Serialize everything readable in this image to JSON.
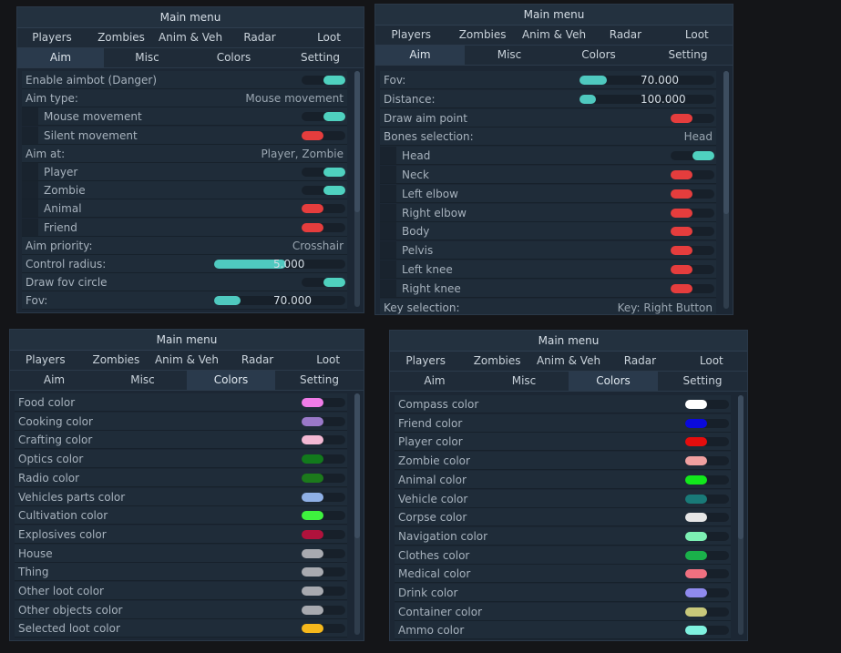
{
  "menu_title": "Main menu",
  "tabs_row1": [
    "Players",
    "Zombies",
    "Anim & Veh",
    "Radar",
    "Loot"
  ],
  "tabs_row2": [
    "Aim",
    "Misc",
    "Colors",
    "Setting"
  ],
  "panel_aim": {
    "active_tab": "Aim",
    "rows": [
      {
        "label": "Enable aimbot (Danger)",
        "kind": "toggle",
        "on": true
      },
      {
        "label": "Aim type:",
        "kind": "value",
        "value": "Mouse movement"
      },
      {
        "label": "Mouse movement",
        "kind": "toggle",
        "on": true,
        "sub": true
      },
      {
        "label": "Silent movement",
        "kind": "toggle",
        "on": false,
        "sub": true
      },
      {
        "label": "Aim at:",
        "kind": "value",
        "value": "Player, Zombie"
      },
      {
        "label": "Player",
        "kind": "toggle",
        "on": true,
        "sub": true
      },
      {
        "label": "Zombie",
        "kind": "toggle",
        "on": true,
        "sub": true
      },
      {
        "label": "Animal",
        "kind": "toggle",
        "on": false,
        "sub": true
      },
      {
        "label": "Friend",
        "kind": "toggle",
        "on": false,
        "sub": true
      },
      {
        "label": "Aim priority:",
        "kind": "value",
        "value": "Crosshair"
      },
      {
        "label": "Control radius:",
        "kind": "slider",
        "fraction": 0.55,
        "value": "5.000"
      },
      {
        "label": "Draw fov circle",
        "kind": "toggle",
        "on": true
      },
      {
        "label": "Fov:",
        "kind": "slider",
        "fraction": 0.2,
        "value": "70.000"
      }
    ]
  },
  "panel_setting": {
    "active_tab": "Aim",
    "rows": [
      {
        "label": "Fov:",
        "kind": "slider",
        "fraction": 0.2,
        "value": "70.000"
      },
      {
        "label": "Distance:",
        "kind": "slider",
        "fraction": 0.12,
        "value": "100.000"
      },
      {
        "label": "Draw aim point",
        "kind": "toggle",
        "on": false
      },
      {
        "label": "Bones selection:",
        "kind": "value",
        "value": "Head"
      },
      {
        "label": "Head",
        "kind": "toggle",
        "on": true,
        "sub": true
      },
      {
        "label": "Neck",
        "kind": "toggle",
        "on": false,
        "sub": true
      },
      {
        "label": "Left elbow",
        "kind": "toggle",
        "on": false,
        "sub": true
      },
      {
        "label": "Right elbow",
        "kind": "toggle",
        "on": false,
        "sub": true
      },
      {
        "label": "Body",
        "kind": "toggle",
        "on": false,
        "sub": true
      },
      {
        "label": "Pelvis",
        "kind": "toggle",
        "on": false,
        "sub": true
      },
      {
        "label": "Left knee",
        "kind": "toggle",
        "on": false,
        "sub": true
      },
      {
        "label": "Right knee",
        "kind": "toggle",
        "on": false,
        "sub": true
      },
      {
        "label": "Key selection:",
        "kind": "value",
        "value": "Key: Right Button"
      }
    ]
  },
  "panel_loot_colors": {
    "active_tab": "Colors",
    "rows": [
      {
        "label": "Food color",
        "kind": "color",
        "color": "#f07ce8"
      },
      {
        "label": "Cooking color",
        "kind": "color",
        "color": "#9a79c9"
      },
      {
        "label": "Crafting color",
        "kind": "color",
        "color": "#f3b8d3"
      },
      {
        "label": "Optics color",
        "kind": "color",
        "color": "#127a1c"
      },
      {
        "label": "Radio color",
        "kind": "color",
        "color": "#1c7a1c"
      },
      {
        "label": "Vehicles parts color",
        "kind": "color",
        "color": "#8fb0e6"
      },
      {
        "label": "Cultivation color",
        "kind": "color",
        "color": "#3ef23e"
      },
      {
        "label": "Explosives color",
        "kind": "color",
        "color": "#b0123c"
      },
      {
        "label": "House",
        "kind": "color",
        "color": "#a8aab0"
      },
      {
        "label": "Thing",
        "kind": "color",
        "color": "#a8aab0"
      },
      {
        "label": "Other loot color",
        "kind": "color",
        "color": "#a8aab0"
      },
      {
        "label": "Other objects color",
        "kind": "color",
        "color": "#a8aab0"
      },
      {
        "label": "Selected loot color",
        "kind": "color",
        "color": "#f5b81c"
      }
    ]
  },
  "panel_entity_colors": {
    "active_tab": "Colors",
    "rows": [
      {
        "label": "Compass color",
        "kind": "color",
        "color": "#ffffff"
      },
      {
        "label": "Friend color",
        "kind": "color",
        "color": "#0a0adc"
      },
      {
        "label": "Player color",
        "kind": "color",
        "color": "#e50d0d"
      },
      {
        "label": "Zombie color",
        "kind": "color",
        "color": "#f0a0a0"
      },
      {
        "label": "Animal color",
        "kind": "color",
        "color": "#12e81c"
      },
      {
        "label": "Vehicle color",
        "kind": "color",
        "color": "#197a78"
      },
      {
        "label": "Corpse color",
        "kind": "color",
        "color": "#e6e6e6"
      },
      {
        "label": "Navigation color",
        "kind": "color",
        "color": "#7df0b4"
      },
      {
        "label": "Clothes color",
        "kind": "color",
        "color": "#1ab04a"
      },
      {
        "label": "Medical color",
        "kind": "color",
        "color": "#f07080"
      },
      {
        "label": "Drink color",
        "kind": "color",
        "color": "#8f8aee"
      },
      {
        "label": "Container color",
        "kind": "color",
        "color": "#c8c87a"
      },
      {
        "label": "Ammo color",
        "kind": "color",
        "color": "#7ff2e0"
      }
    ]
  }
}
